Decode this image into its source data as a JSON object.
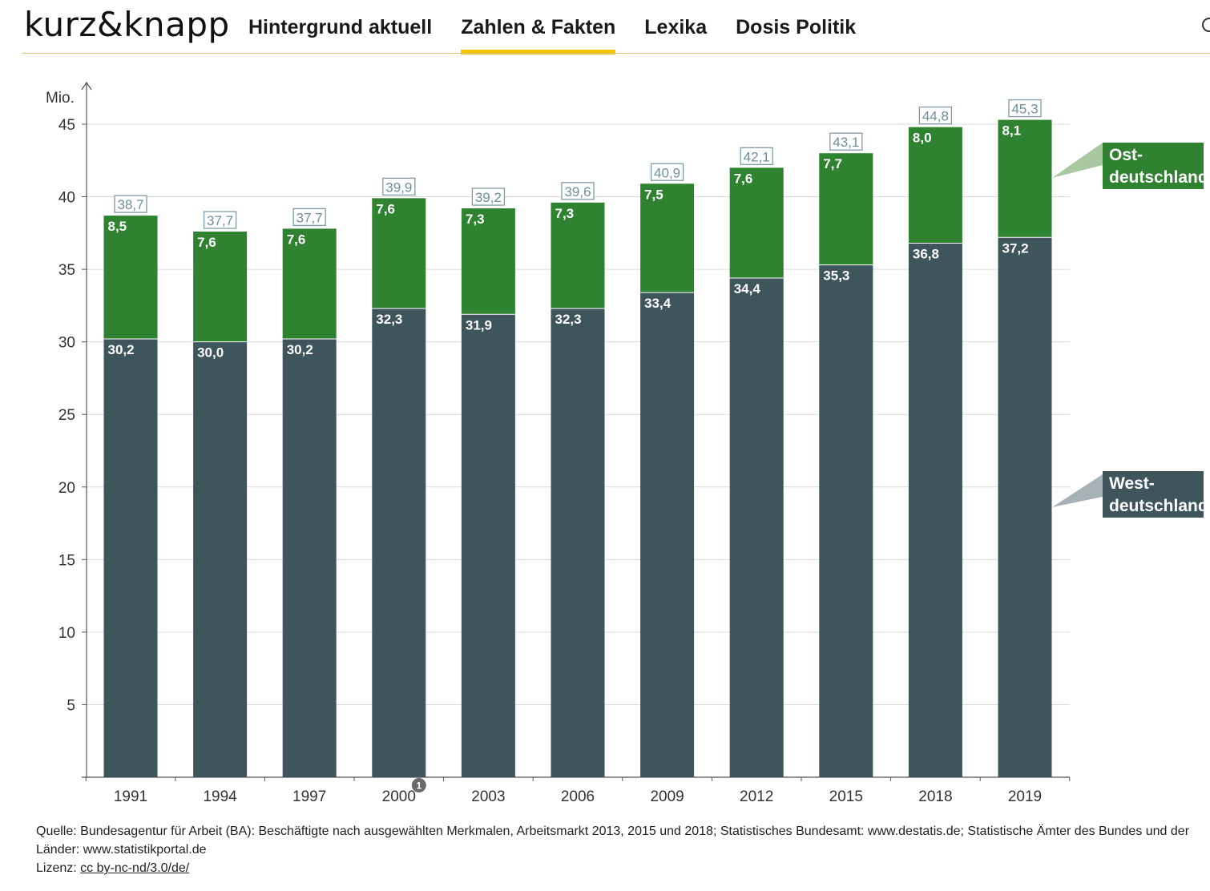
{
  "header": {
    "logo": "kurz&knapp",
    "nav": [
      {
        "label": "Hintergrund aktuell",
        "active": false
      },
      {
        "label": "Zahlen & Fakten",
        "active": true
      },
      {
        "label": "Lexika",
        "active": false
      },
      {
        "label": "Dosis Politik",
        "active": false
      }
    ]
  },
  "chart_data": {
    "type": "bar",
    "stacked": true,
    "ylabel": "Mio.",
    "ylim": [
      0,
      45
    ],
    "yticks": [
      5,
      10,
      15,
      20,
      25,
      30,
      35,
      40,
      45
    ],
    "grid": true,
    "categories": [
      "1991",
      "1994",
      "1997",
      "2000",
      "2003",
      "2006",
      "2009",
      "2012",
      "2015",
      "2018",
      "2019"
    ],
    "series": [
      {
        "name": "West-\ndeutschland",
        "color": "#3e555c",
        "values": [
          30.2,
          30.0,
          30.2,
          32.3,
          31.9,
          32.3,
          33.4,
          34.4,
          35.3,
          36.8,
          37.2
        ],
        "labels": [
          "30,2",
          "30,0",
          "30,2",
          "32,3",
          "31,9",
          "32,3",
          "33,4",
          "34,4",
          "35,3",
          "36,8",
          "37,2"
        ]
      },
      {
        "name": "Ost-\ndeutschland",
        "color": "#2e8230",
        "values": [
          8.5,
          7.6,
          7.6,
          7.6,
          7.3,
          7.3,
          7.5,
          7.6,
          7.7,
          8.0,
          8.1
        ],
        "labels": [
          "8,5",
          "7,6",
          "7,6",
          "7,6",
          "7,3",
          "7,3",
          "7,5",
          "7,6",
          "7,7",
          "8,0",
          "8,1"
        ]
      }
    ],
    "totals": [
      38.7,
      37.7,
      37.7,
      39.9,
      39.2,
      39.6,
      40.9,
      42.1,
      43.1,
      44.8,
      45.3
    ],
    "total_labels": [
      "38,7",
      "37,7",
      "37,7",
      "39,9",
      "39,2",
      "39,6",
      "40,9",
      "42,1",
      "43,1",
      "44,8",
      "45,3"
    ],
    "footnote": {
      "category": "2000",
      "marker": "1"
    },
    "legend": [
      {
        "line1": "Ost-",
        "line2": "deutschland",
        "color": "#2e8230"
      },
      {
        "line1": "West-",
        "line2": "deutschland",
        "color": "#3e555c"
      }
    ],
    "legend_position": "right"
  },
  "footer": {
    "source": "Quelle: Bundesagentur für Arbeit (BA): Beschäftigte nach ausgewählten Merkmalen, Arbeitsmarkt 2013, 2015 und 2018; Statistisches Bundesamt: www.destatis.de; Statistische Ämter des Bundes und der Länder: www.statistikportal.de",
    "license_label": "Lizenz:",
    "license_link": "cc by-nc-nd/3.0/de/"
  }
}
